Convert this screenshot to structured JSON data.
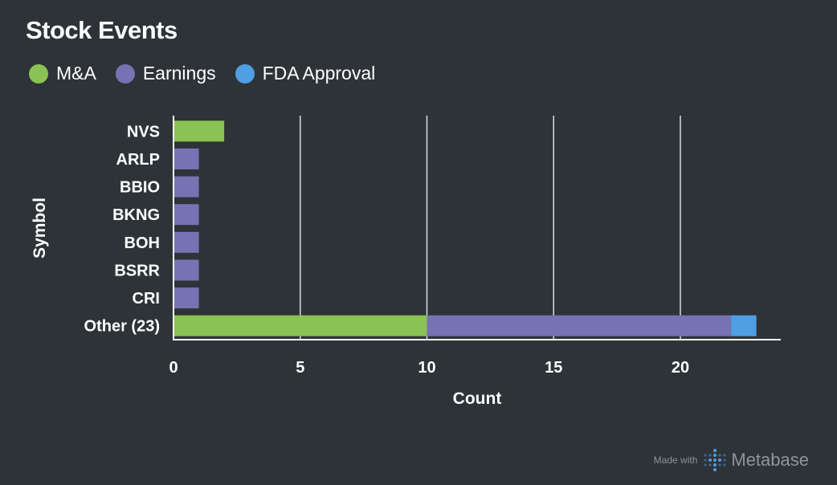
{
  "title": "Stock Events",
  "legend": [
    {
      "name": "M&A",
      "color": "#8ac253"
    },
    {
      "name": "Earnings",
      "color": "#7673b3"
    },
    {
      "name": "FDA Approval",
      "color": "#509ee3"
    }
  ],
  "footer": {
    "made_with": "Made with",
    "brand": "Metabase"
  },
  "chart_data": {
    "type": "bar",
    "orientation": "horizontal",
    "stacked": true,
    "title": "Stock Events",
    "xlabel": "Count",
    "ylabel": "Symbol",
    "categories": [
      "NVS",
      "ARLP",
      "BBIO",
      "BKNG",
      "BOH",
      "BSRR",
      "CRI",
      "Other (23)"
    ],
    "series": [
      {
        "name": "M&A",
        "color": "#8ac253",
        "values": [
          2,
          0,
          0,
          0,
          0,
          0,
          0,
          10
        ]
      },
      {
        "name": "Earnings",
        "color": "#7673b3",
        "values": [
          0,
          1,
          1,
          1,
          1,
          1,
          1,
          12
        ]
      },
      {
        "name": "FDA Approval",
        "color": "#509ee3",
        "values": [
          0,
          0,
          0,
          0,
          0,
          0,
          0,
          1
        ]
      }
    ],
    "x_ticks": [
      0,
      5,
      10,
      15,
      20
    ],
    "xlim": [
      0,
      24
    ],
    "grid": "vertical",
    "legend_position": "top-left"
  }
}
